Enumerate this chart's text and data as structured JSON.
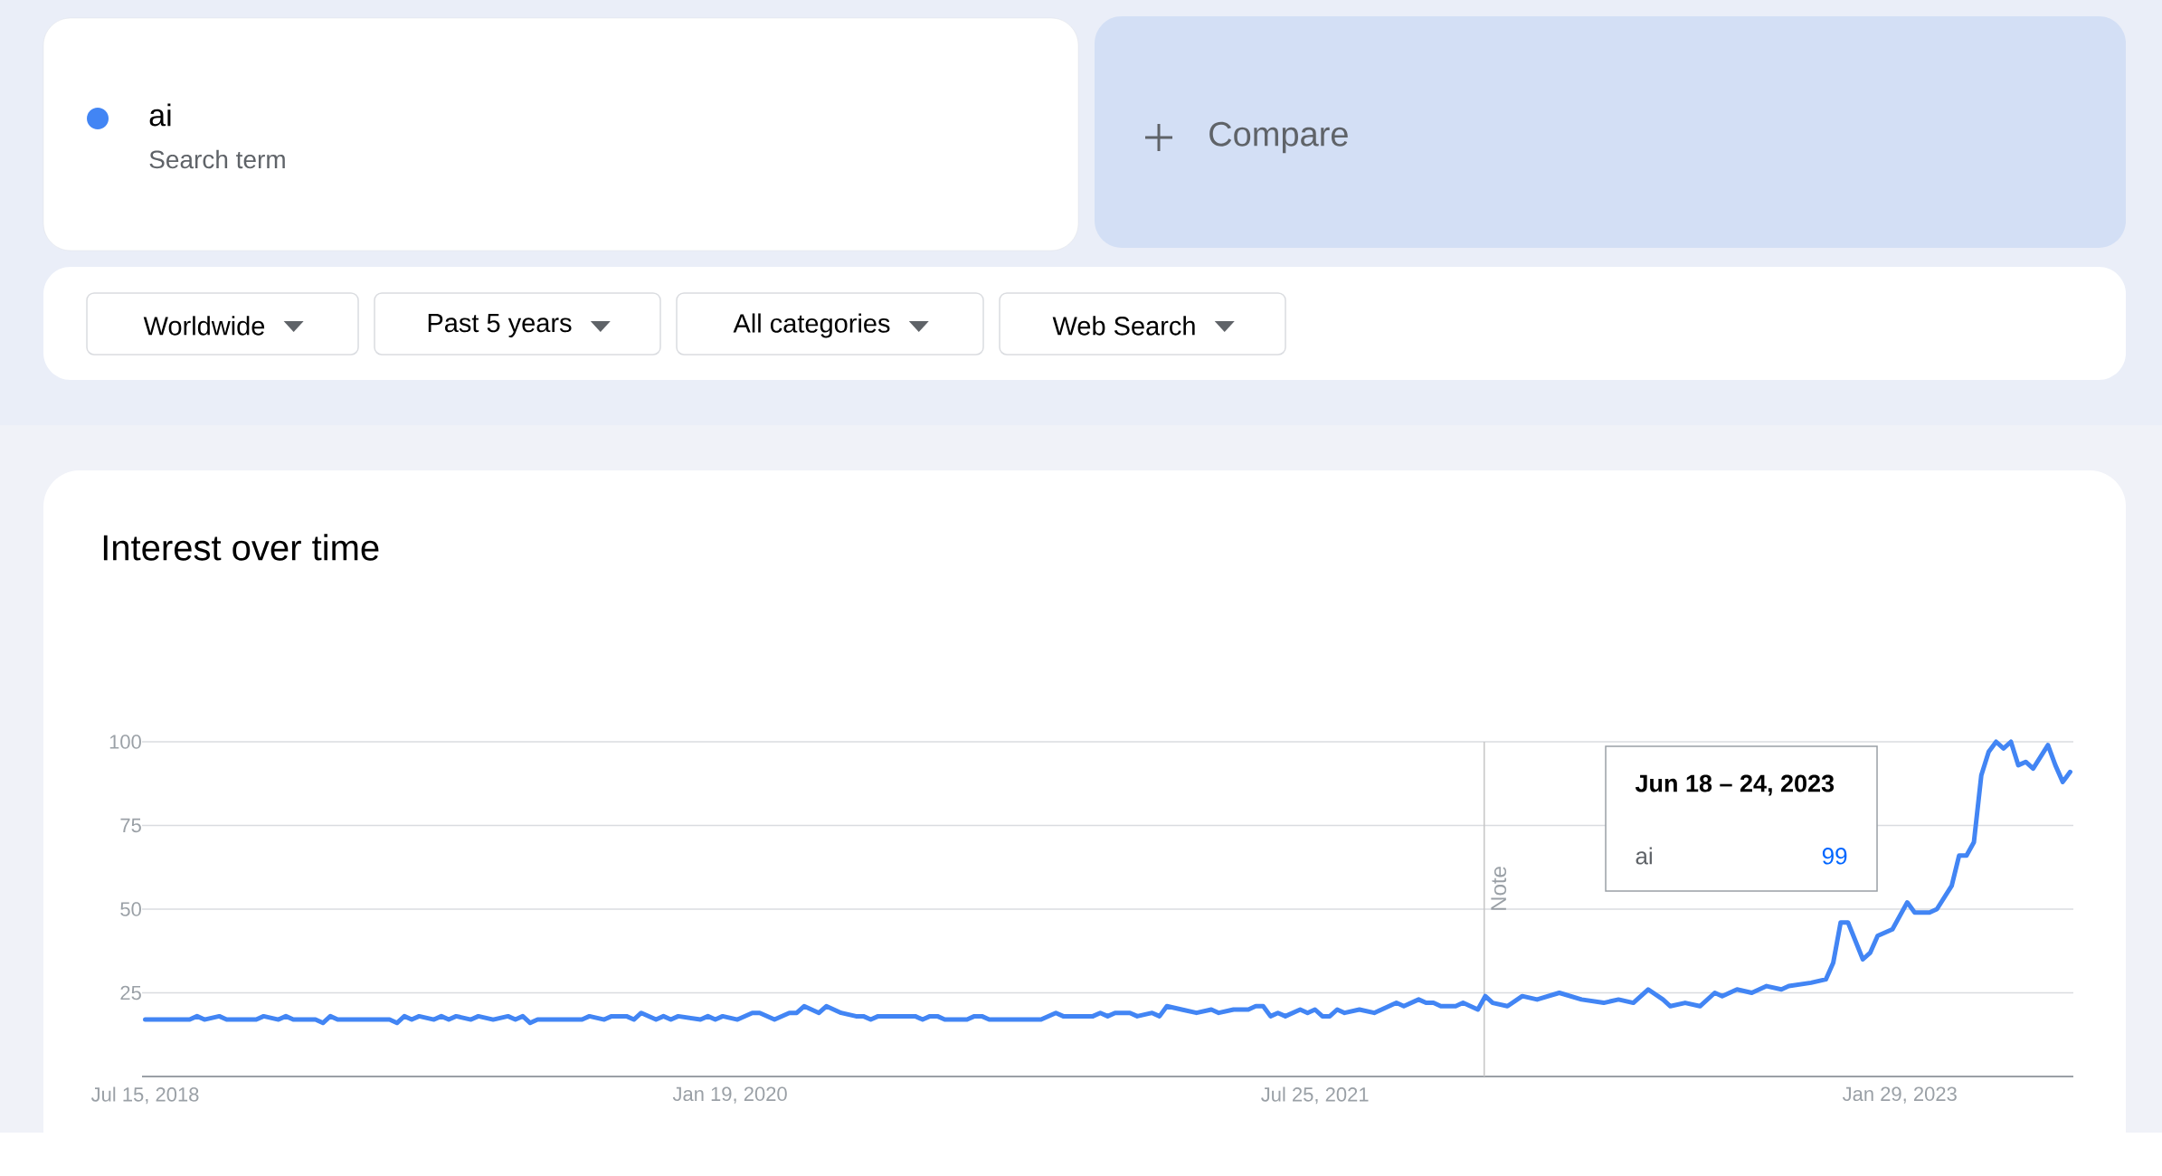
{
  "chart_data": {
    "type": "line",
    "title": "Interest over time",
    "x": [
      "2018-07-15",
      "2018-08-26",
      "2018-09-02",
      "2018-09-09",
      "2018-09-23",
      "2018-09-30",
      "2018-10-28",
      "2018-11-04",
      "2018-11-18",
      "2018-11-25",
      "2018-12-02",
      "2018-12-23",
      "2018-12-30",
      "2019-01-06",
      "2019-01-13",
      "2019-03-03",
      "2019-03-10",
      "2019-03-17",
      "2019-03-24",
      "2019-03-31",
      "2019-04-14",
      "2019-04-21",
      "2019-04-28",
      "2019-05-05",
      "2019-05-19",
      "2019-05-26",
      "2019-06-09",
      "2019-06-23",
      "2019-06-30",
      "2019-07-07",
      "2019-07-14",
      "2019-07-21",
      "2019-09-01",
      "2019-09-08",
      "2019-09-22",
      "2019-09-29",
      "2019-10-13",
      "2019-10-20",
      "2019-10-27",
      "2019-11-10",
      "2019-11-17",
      "2019-11-24",
      "2019-12-01",
      "2019-12-22",
      "2019-12-29",
      "2020-01-05",
      "2020-01-12",
      "2020-01-26",
      "2020-02-09",
      "2020-02-16",
      "2020-03-01",
      "2020-03-15",
      "2020-03-22",
      "2020-03-29",
      "2020-04-12",
      "2020-04-19",
      "2020-05-03",
      "2020-05-17",
      "2020-05-24",
      "2020-05-31",
      "2020-06-07",
      "2020-07-12",
      "2020-07-19",
      "2020-07-26",
      "2020-08-02",
      "2020-08-09",
      "2020-08-30",
      "2020-09-06",
      "2020-09-13",
      "2020-09-20",
      "2020-11-08",
      "2020-11-22",
      "2020-11-29",
      "2020-12-27",
      "2021-01-03",
      "2021-01-10",
      "2021-01-17",
      "2021-01-31",
      "2021-02-07",
      "2021-02-21",
      "2021-02-28",
      "2021-03-07",
      "2021-03-21",
      "2021-04-04",
      "2021-04-18",
      "2021-04-25",
      "2021-05-09",
      "2021-05-23",
      "2021-05-30",
      "2021-06-06",
      "2021-06-13",
      "2021-06-20",
      "2021-06-27",
      "2021-07-11",
      "2021-07-18",
      "2021-07-25",
      "2021-08-01",
      "2021-08-08",
      "2021-08-15",
      "2021-08-22",
      "2021-09-05",
      "2021-09-19",
      "2021-10-10",
      "2021-10-17",
      "2021-10-31",
      "2021-11-07",
      "2021-11-14",
      "2021-11-21",
      "2021-12-05",
      "2021-12-12",
      "2021-12-26",
      "2022-01-02",
      "2022-01-09",
      "2022-01-23",
      "2022-02-06",
      "2022-02-20",
      "2022-03-13",
      "2022-04-03",
      "2022-04-24",
      "2022-05-08",
      "2022-05-22",
      "2022-06-05",
      "2022-06-19",
      "2022-06-26",
      "2022-07-10",
      "2022-07-24",
      "2022-08-07",
      "2022-08-14",
      "2022-08-28",
      "2022-09-11",
      "2022-09-25",
      "2022-10-09",
      "2022-10-16",
      "2022-11-06",
      "2022-11-20",
      "2022-11-27",
      "2022-12-04",
      "2022-12-11",
      "2022-12-25",
      "2023-01-01",
      "2023-01-08",
      "2023-01-22",
      "2023-02-05",
      "2023-02-12",
      "2023-02-26",
      "2023-03-05",
      "2023-03-19",
      "2023-03-26",
      "2023-04-02",
      "2023-04-09",
      "2023-04-16",
      "2023-04-23",
      "2023-04-30",
      "2023-05-07",
      "2023-05-14",
      "2023-05-21",
      "2023-05-28",
      "2023-06-04",
      "2023-06-18",
      "2023-06-25",
      "2023-07-02",
      "2023-07-09"
    ],
    "series": [
      {
        "name": "ai",
        "color": "#4285f4",
        "values": [
          17,
          17,
          18,
          17,
          18,
          17,
          17,
          18,
          17,
          18,
          17,
          17,
          16,
          18,
          17,
          17,
          16,
          18,
          17,
          18,
          17,
          18,
          17,
          18,
          17,
          18,
          17,
          18,
          17,
          18,
          16,
          17,
          17,
          18,
          17,
          18,
          18,
          17,
          19,
          17,
          18,
          17,
          18,
          17,
          18,
          17,
          18,
          17,
          19,
          19,
          17,
          19,
          19,
          21,
          19,
          21,
          19,
          18,
          18,
          17,
          18,
          18,
          17,
          18,
          18,
          17,
          17,
          18,
          18,
          17,
          17,
          19,
          18,
          18,
          19,
          18,
          19,
          19,
          18,
          19,
          18,
          21,
          20,
          19,
          20,
          19,
          20,
          20,
          21,
          21,
          18,
          19,
          18,
          20,
          19,
          20,
          18,
          18,
          20,
          19,
          20,
          19,
          22,
          21,
          23,
          22,
          22,
          21,
          21,
          22,
          20,
          24,
          22,
          21,
          24,
          23,
          25,
          23,
          22,
          23,
          22,
          26,
          23,
          21,
          22,
          21,
          25,
          24,
          26,
          25,
          27,
          26,
          27,
          28,
          29,
          34,
          46,
          46,
          35,
          37,
          42,
          44,
          52,
          49,
          49,
          50,
          57,
          66,
          66,
          70,
          90,
          97,
          100,
          98,
          100,
          93,
          94,
          92,
          99,
          93,
          88,
          91
        ]
      }
    ],
    "xlim": [
      "2018-07-12",
      "2023-07-12"
    ],
    "xticks": [
      {
        "value": "2018-07-15",
        "label": "Jul 15, 2018"
      },
      {
        "value": "2020-01-19",
        "label": "Jan 19, 2020"
      },
      {
        "value": "2021-07-25",
        "label": "Jul 25, 2021"
      },
      {
        "value": "2023-01-29",
        "label": "Jan 29, 2023"
      }
    ],
    "ylim": [
      0,
      100
    ],
    "yticks": [
      25,
      50,
      75,
      100
    ],
    "grid": "y",
    "legend": "top left",
    "ref_lines": [
      {
        "axis": "x",
        "value": "2022-01-01",
        "label": "Note",
        "color": "#c6c6c6"
      }
    ],
    "annotations": [
      "Search term",
      "Compare",
      "Worldwide",
      "Past 5 years",
      "All categories",
      "Web Search",
      "Jun 18 – 24, 2023",
      "ai",
      "99"
    ]
  }
}
